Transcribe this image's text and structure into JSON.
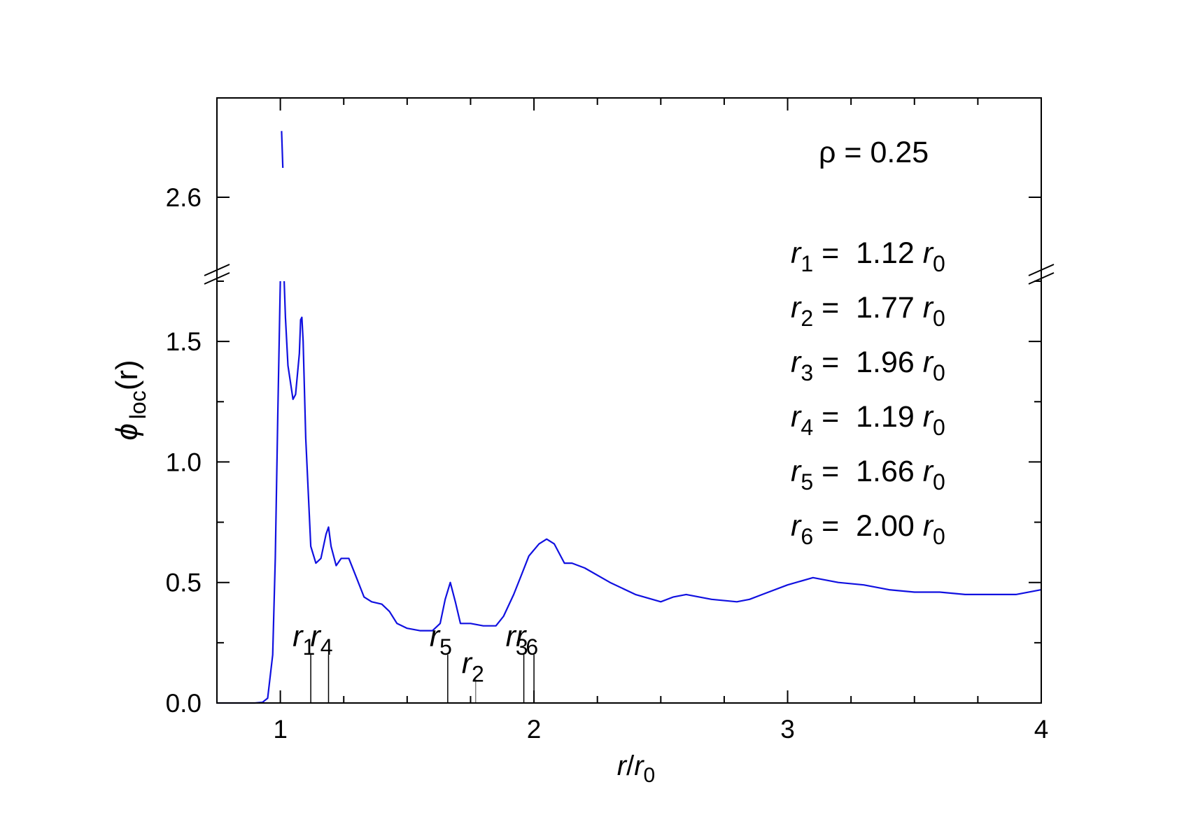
{
  "chart_data": {
    "type": "line",
    "title": "",
    "xlabel": {
      "main": "r",
      "slash": "/",
      "var": "r",
      "sub": "0"
    },
    "ylabel": {
      "symbol": "ϕ",
      "sub": "loc",
      "arg": "(r)"
    },
    "xlim": [
      0.75,
      4.0
    ],
    "ylim_lower": [
      0.0,
      1.75
    ],
    "ylim_upper": [
      2.41,
      2.87
    ],
    "y_axis_break": true,
    "x_ticks": [
      1,
      2,
      3,
      4
    ],
    "x_tick_labels": [
      "1",
      "2",
      "3",
      "4"
    ],
    "y_ticks_lower": [
      0.0,
      0.5,
      1.0,
      1.5
    ],
    "y_tick_labels_lower": [
      "0.0",
      "0.5",
      "1.0",
      "1.5"
    ],
    "y_ticks_upper": [
      2.6
    ],
    "y_tick_labels_upper": [
      "2.6"
    ],
    "grid": false,
    "line_color": "#1010e0",
    "series": [
      {
        "x": [
          0.75,
          0.9,
          0.93,
          0.95,
          0.97,
          0.98,
          0.99,
          1.0,
          1.005,
          1.01,
          1.015,
          1.02,
          1.03,
          1.05,
          1.06,
          1.075,
          1.08,
          1.085,
          1.09,
          1.1,
          1.12,
          1.14,
          1.16,
          1.18,
          1.19,
          1.2,
          1.22,
          1.24,
          1.27,
          1.3,
          1.33,
          1.36,
          1.4,
          1.43,
          1.46,
          1.5,
          1.55,
          1.6,
          1.63,
          1.65,
          1.67,
          1.69,
          1.71,
          1.75,
          1.8,
          1.85,
          1.88,
          1.92,
          1.95,
          1.98,
          2.02,
          2.05,
          2.08,
          2.12,
          2.15,
          2.2,
          2.3,
          2.4,
          2.5,
          2.55,
          2.6,
          2.7,
          2.8,
          2.85,
          2.9,
          3.0,
          3.1,
          3.2,
          3.3,
          3.4,
          3.5,
          3.6,
          3.7,
          3.8,
          3.9,
          4.0
        ],
        "y": [
          0.0,
          0.0,
          0.003,
          0.02,
          0.2,
          0.6,
          1.2,
          1.75,
          2.78,
          2.68,
          1.75,
          1.6,
          1.4,
          1.26,
          1.28,
          1.45,
          1.59,
          1.6,
          1.5,
          1.1,
          0.65,
          0.58,
          0.6,
          0.7,
          0.73,
          0.65,
          0.57,
          0.6,
          0.6,
          0.52,
          0.44,
          0.42,
          0.41,
          0.38,
          0.33,
          0.31,
          0.3,
          0.3,
          0.33,
          0.43,
          0.5,
          0.42,
          0.33,
          0.33,
          0.32,
          0.32,
          0.36,
          0.45,
          0.53,
          0.61,
          0.66,
          0.68,
          0.66,
          0.58,
          0.58,
          0.56,
          0.5,
          0.45,
          0.42,
          0.44,
          0.45,
          0.43,
          0.42,
          0.43,
          0.45,
          0.49,
          0.52,
          0.5,
          0.49,
          0.47,
          0.46,
          0.46,
          0.45,
          0.45,
          0.45,
          0.47
        ]
      }
    ],
    "markers": [
      {
        "name": "r",
        "sub": "1",
        "x": 1.12,
        "y_top": 0.2,
        "color": "#000000"
      },
      {
        "name": "r",
        "sub": "4",
        "x": 1.19,
        "y_top": 0.2,
        "color": "#000000"
      },
      {
        "name": "r",
        "sub": "5",
        "x": 1.66,
        "y_top": 0.2,
        "color": "#000000"
      },
      {
        "name": "r",
        "sub": "2",
        "x": 1.77,
        "y_top": 0.1,
        "color": "#808080"
      },
      {
        "name": "r",
        "sub": "3",
        "x": 1.96,
        "y_top": 0.2,
        "color": "#000000"
      },
      {
        "name": "r",
        "sub": "6",
        "x": 2.0,
        "y_top": 0.2,
        "color": "#000000"
      }
    ],
    "annotations": {
      "rho": "ρ = 0.25",
      "rows": [
        {
          "var": "r",
          "sub": "1",
          "eq": " =  1.12 ",
          "unit": "r",
          "unit_sub": "0"
        },
        {
          "var": "r",
          "sub": "2",
          "eq": " =  1.77 ",
          "unit": "r",
          "unit_sub": "0"
        },
        {
          "var": "r",
          "sub": "3",
          "eq": " =  1.96 ",
          "unit": "r",
          "unit_sub": "0"
        },
        {
          "var": "r",
          "sub": "4",
          "eq": " =  1.19 ",
          "unit": "r",
          "unit_sub": "0"
        },
        {
          "var": "r",
          "sub": "5",
          "eq": " =  1.66 ",
          "unit": "r",
          "unit_sub": "0"
        },
        {
          "var": "r",
          "sub": "6",
          "eq": " =  2.00 ",
          "unit": "r",
          "unit_sub": "0"
        }
      ]
    }
  }
}
